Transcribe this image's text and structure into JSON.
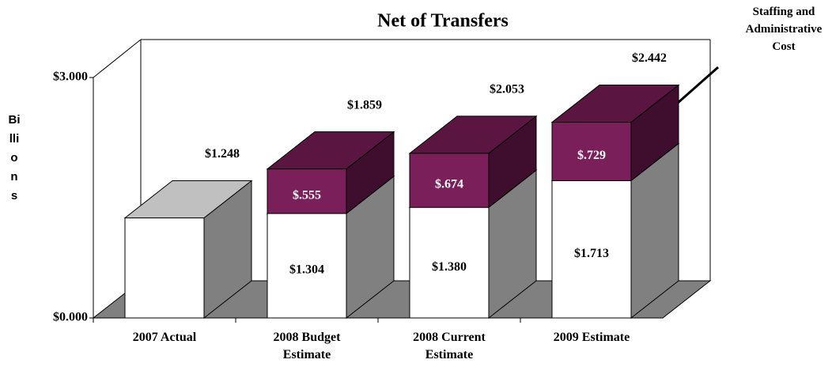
{
  "chart_data": {
    "type": "bar3d_stacked",
    "title": "Net of Transfers",
    "y_axis_label": "Billions",
    "categories": [
      "2007 Actual",
      "2008 Budget Estimate",
      "2008 Current Estimate",
      "2009 Estimate"
    ],
    "series": [
      {
        "color": "#ffffff",
        "values": [
          1.248,
          1.304,
          1.38,
          1.713
        ],
        "value_labels": [
          null,
          "$1.304",
          "$1.380",
          "$1.713"
        ]
      },
      {
        "name": "Staffing and Administrative Cost",
        "color": "#7b1f5a",
        "values": [
          null,
          0.555,
          0.674,
          0.729
        ],
        "value_labels": [
          null,
          "$.555",
          "$.674",
          "$.729"
        ]
      }
    ],
    "totals": [
      1.248,
      1.859,
      2.053,
      2.442
    ],
    "total_labels": [
      "$1.248",
      "$1.859",
      "$2.053",
      "$2.442"
    ],
    "ylim": [
      0,
      3
    ],
    "yticks": [
      {
        "value": 0,
        "label": "$0.000"
      },
      {
        "value": 3,
        "label": "$3.000"
      }
    ]
  }
}
